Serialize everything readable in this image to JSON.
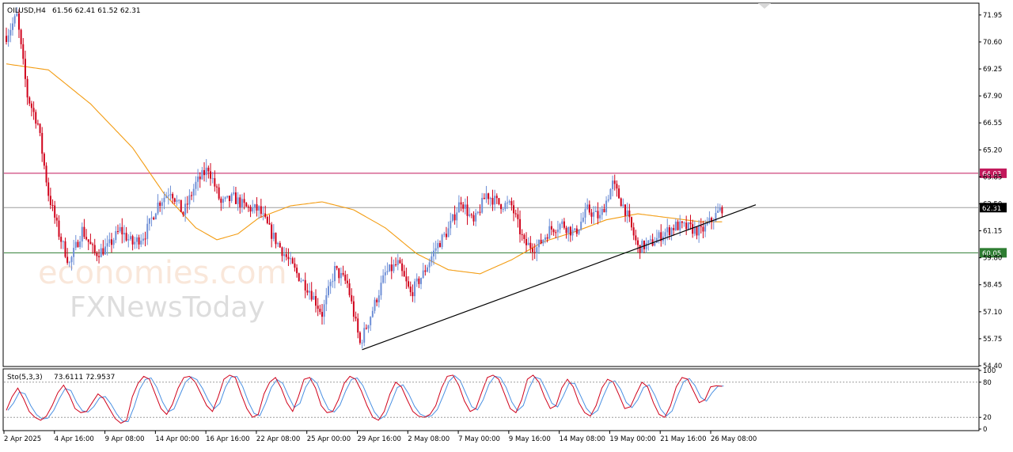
{
  "symbol_header": {
    "symbol": "OILUSD,H4",
    "ohlc": "61.56 62.41 61.52 62.31"
  },
  "stochastic_header": {
    "label": "Sto(5,3,3)",
    "values": "73.6111 72.9537"
  },
  "watermark": {
    "line1": "economies.com",
    "line2": "FXNewsToday"
  },
  "colors": {
    "bull_candle": "#6e8fd6",
    "bear_candle": "#d0021b",
    "moving_average": "#f39c12",
    "resistance": "#c2185b",
    "support": "#2e7d32",
    "current_price": "#000000",
    "trendline": "#000000",
    "stoch_main": "#d0021b",
    "stoch_signal": "#4a90e2"
  },
  "chart_data": [
    {
      "type": "candlestick",
      "title": "OILUSD,H4",
      "y_ticks": [
        "71.95",
        "70.60",
        "69.25",
        "67.90",
        "66.55",
        "65.20",
        "63.85",
        "62.50",
        "61.15",
        "59.80",
        "58.45",
        "57.10",
        "55.75",
        "54.40"
      ],
      "ylim": [
        54.4,
        72.5
      ],
      "x_tick_labels": [
        "2 Apr 2025",
        "4 Apr 16:00",
        "9 Apr 08:00",
        "14 Apr 00:00",
        "16 Apr 16:00",
        "22 Apr 08:00",
        "25 Apr 00:00",
        "29 Apr 16:00",
        "2 May 08:00",
        "7 May 00:00",
        "9 May 16:00",
        "14 May 08:00",
        "19 May 00:00",
        "21 May 16:00",
        "26 May 08:00"
      ],
      "price_path": [
        [
          0,
          70.9
        ],
        [
          5,
          71.9
        ],
        [
          10,
          67.9
        ],
        [
          15,
          66.5
        ],
        [
          20,
          63.0
        ],
        [
          25,
          61.0
        ],
        [
          30,
          59.5
        ],
        [
          36,
          61.2
        ],
        [
          42,
          60.0
        ],
        [
          48,
          60.3
        ],
        [
          54,
          61.2
        ],
        [
          60,
          60.5
        ],
        [
          66,
          61.0
        ],
        [
          72,
          62.5
        ],
        [
          78,
          63.2
        ],
        [
          84,
          62.0
        ],
        [
          90,
          63.5
        ],
        [
          96,
          64.3
        ],
        [
          102,
          62.5
        ],
        [
          108,
          62.8
        ],
        [
          114,
          62.3
        ],
        [
          120,
          62.2
        ],
        [
          126,
          61.0
        ],
        [
          132,
          60.0
        ],
        [
          138,
          59.0
        ],
        [
          144,
          58.2
        ],
        [
          150,
          57.0
        ],
        [
          156,
          59.2
        ],
        [
          162,
          58.5
        ],
        [
          168,
          55.5
        ],
        [
          174,
          57.2
        ],
        [
          180,
          59.0
        ],
        [
          186,
          59.5
        ],
        [
          192,
          58.0
        ],
        [
          198,
          59.0
        ],
        [
          204,
          60.3
        ],
        [
          210,
          61.2
        ],
        [
          216,
          62.7
        ],
        [
          222,
          61.5
        ],
        [
          228,
          63.0
        ],
        [
          234,
          62.5
        ],
        [
          240,
          62.4
        ],
        [
          246,
          60.5
        ],
        [
          252,
          60.3
        ],
        [
          258,
          61.2
        ],
        [
          264,
          61.5
        ],
        [
          270,
          61.0
        ],
        [
          276,
          62.2
        ],
        [
          282,
          61.8
        ],
        [
          288,
          63.5
        ],
        [
          294,
          62.2
        ],
        [
          300,
          60.3
        ],
        [
          306,
          60.5
        ],
        [
          312,
          61.0
        ],
        [
          318,
          61.4
        ],
        [
          324,
          61.3
        ],
        [
          330,
          61.1
        ],
        [
          336,
          61.8
        ],
        [
          340,
          62.31
        ]
      ],
      "candle_count": 341,
      "annotation_values": [
        64.03,
        62.31,
        60.05
      ],
      "trendline": {
        "from": {
          "candle": 169,
          "price": 55.2
        },
        "to": {
          "candle": 356,
          "price": 62.45
        }
      },
      "series": [
        {
          "name": "OILUSD,H4"
        },
        {
          "type": "line",
          "values_note_ma": [
            [
              0,
              69.5
            ],
            [
              20,
              69.2
            ],
            [
              40,
              67.5
            ],
            [
              60,
              65.3
            ],
            [
              75,
              63.0
            ],
            [
              90,
              61.3
            ],
            [
              100,
              60.7
            ],
            [
              110,
              61.0
            ],
            [
              120,
              61.8
            ],
            [
              135,
              62.4
            ],
            [
              150,
              62.6
            ],
            [
              165,
              62.2
            ],
            [
              180,
              61.3
            ],
            [
              195,
              60.0
            ],
            [
              210,
              59.2
            ],
            [
              225,
              59.0
            ],
            [
              240,
              59.7
            ],
            [
              255,
              60.6
            ],
            [
              270,
              61.1
            ],
            [
              285,
              61.7
            ],
            [
              300,
              62.0
            ],
            [
              315,
              61.8
            ],
            [
              330,
              61.6
            ],
            [
              340,
              61.6
            ]
          ]
        }
      ]
    },
    {
      "type": "line",
      "title": "Sto(5,3,3)",
      "y_ticks": [
        "100",
        "80",
        "20",
        "0"
      ],
      "ylim": [
        0,
        100
      ],
      "levels": [
        80,
        20
      ],
      "series": [
        {
          "name": "Sto(5,3,3)",
          "values": [
            32,
            55,
            70,
            52,
            30,
            20,
            15,
            22,
            40,
            62,
            75,
            58,
            35,
            28,
            30,
            45,
            60,
            52,
            35,
            18,
            10,
            15,
            55,
            78,
            90,
            85,
            60,
            35,
            25,
            42,
            70,
            88,
            90,
            80,
            60,
            40,
            30,
            55,
            85,
            92,
            88,
            60,
            35,
            20,
            25,
            60,
            80,
            88,
            70,
            45,
            30,
            55,
            85,
            88,
            70,
            40,
            28,
            30,
            50,
            78,
            90,
            85,
            65,
            40,
            20,
            15,
            30,
            60,
            80,
            72,
            50,
            30,
            22,
            20,
            25,
            40,
            70,
            90,
            92,
            75,
            48,
            30,
            35,
            62,
            88,
            92,
            85,
            60,
            35,
            28,
            50,
            85,
            92,
            80,
            55,
            35,
            40,
            70,
            85,
            72,
            45,
            28,
            22,
            40,
            70,
            85,
            80,
            58,
            35,
            38,
            60,
            80,
            72,
            45,
            25,
            20,
            40,
            72,
            88,
            85,
            65,
            45,
            50,
            72,
            74,
            73
          ]
        }
      ]
    }
  ]
}
